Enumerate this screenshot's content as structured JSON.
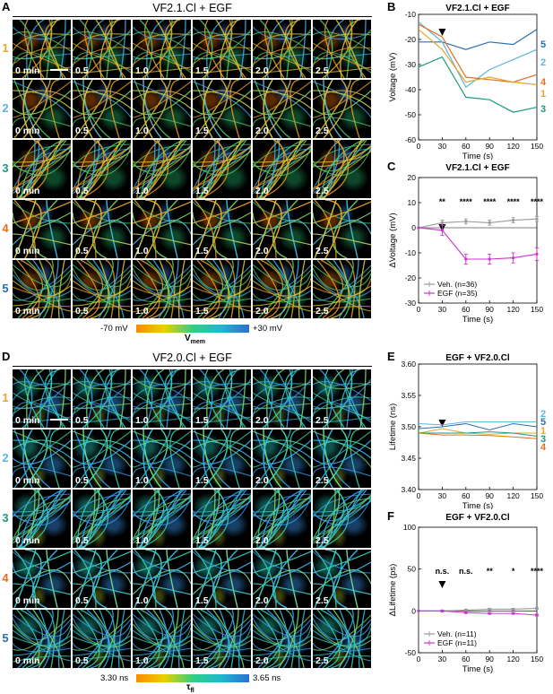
{
  "panels": {
    "A": {
      "label": "A",
      "title": "VF2.1.Cl + EGF"
    },
    "B": {
      "label": "B"
    },
    "C": {
      "label": "C"
    },
    "D": {
      "label": "D",
      "title": "VF2.0.Cl + EGF"
    },
    "E": {
      "label": "E"
    },
    "F": {
      "label": "F"
    }
  },
  "image_grid": {
    "row_labels": [
      "1",
      "2",
      "3",
      "4",
      "5"
    ],
    "row_colors": [
      "#e8a52a",
      "#5fb3dd",
      "#1a9a80",
      "#e07020",
      "#2a6fb0"
    ],
    "time_labels": [
      "0 min",
      "0.5",
      "1.0",
      "1.5",
      "2.0",
      "2.5"
    ]
  },
  "colorbar_top": {
    "min_label": "-70 mV",
    "max_label": "+30 mV",
    "symbol": "V",
    "symbol_sub": "mem"
  },
  "colorbar_bottom": {
    "min_label": "3.30 ns",
    "max_label": "3.65 ns",
    "symbol": "τ",
    "symbol_sub": "fl"
  },
  "chart_data": [
    {
      "id": "B",
      "type": "line",
      "title": "VF2.1.Cl + EGF",
      "xlabel": "Time (s)",
      "ylabel": "Voltage (mV)",
      "xlim": [
        0,
        150
      ],
      "ylim": [
        -60,
        -10
      ],
      "xticks": [
        0,
        30,
        60,
        90,
        120,
        150
      ],
      "yticks": [
        -60,
        -50,
        -40,
        -30,
        -20,
        -10
      ],
      "arrow_x": 30,
      "series": [
        {
          "name": "5",
          "color": "#2a6fb0",
          "x": [
            0,
            30,
            60,
            90,
            120,
            150
          ],
          "y": [
            -21,
            -21,
            -24,
            -21,
            -22,
            -16
          ]
        },
        {
          "name": "2",
          "color": "#5fb3dd",
          "x": [
            0,
            30,
            60,
            90,
            120,
            150
          ],
          "y": [
            -13,
            -21,
            -39,
            -32,
            -28,
            -24
          ]
        },
        {
          "name": "4",
          "color": "#e07020",
          "x": [
            0,
            30,
            60,
            90,
            120,
            150
          ],
          "y": [
            -14,
            -19,
            -35,
            -36,
            -37,
            -34
          ]
        },
        {
          "name": "1",
          "color": "#e8a52a",
          "x": [
            0,
            30,
            60,
            90,
            120,
            150
          ],
          "y": [
            -16,
            -24,
            -37,
            -35,
            -37,
            -38
          ]
        },
        {
          "name": "3",
          "color": "#1a9a80",
          "x": [
            0,
            30,
            60,
            90,
            120,
            150
          ],
          "y": [
            -31,
            -27,
            -43,
            -44,
            -49,
            -47
          ]
        }
      ]
    },
    {
      "id": "C",
      "type": "line",
      "title": "VF2.1.Cl + EGF",
      "xlabel": "Time (s)",
      "ylabel": "ΔVoltage (mV)",
      "xlim": [
        0,
        150
      ],
      "ylim": [
        -30,
        20
      ],
      "xticks": [
        0,
        30,
        60,
        90,
        120,
        150
      ],
      "yticks": [
        -30,
        -20,
        -10,
        0,
        10,
        20
      ],
      "arrow_x": 30,
      "significance": [
        "**",
        "****",
        "****",
        "****",
        "****"
      ],
      "significance_x": [
        30,
        60,
        90,
        120,
        150
      ],
      "legend": "bottom-left",
      "series": [
        {
          "name": "Veh. (n=36)",
          "color": "#999999",
          "x": [
            0,
            30,
            60,
            90,
            120,
            150
          ],
          "y": [
            0,
            2,
            2.5,
            2,
            3,
            3.5
          ],
          "err": [
            0,
            1,
            1,
            1,
            1,
            1
          ]
        },
        {
          "name": "EGF (n=35)",
          "color": "#cc33cc",
          "x": [
            0,
            30,
            60,
            90,
            120,
            150
          ],
          "y": [
            0,
            -1,
            -12.5,
            -12.5,
            -12,
            -10.5
          ],
          "err": [
            0,
            2,
            2,
            2,
            2,
            2.5
          ]
        }
      ]
    },
    {
      "id": "E",
      "type": "line",
      "title": "EGF + VF2.0.Cl",
      "xlabel": "Time (s)",
      "ylabel": "Lifetime (ns)",
      "xlim": [
        0,
        150
      ],
      "ylim": [
        3.4,
        3.6
      ],
      "xticks": [
        0,
        30,
        60,
        90,
        120,
        150
      ],
      "yticks": [
        3.4,
        3.45,
        3.5,
        3.55,
        3.6
      ],
      "arrow_x": 30,
      "series": [
        {
          "name": "2",
          "color": "#5fb3dd",
          "x": [
            0,
            30,
            60,
            90,
            120,
            150
          ],
          "y": [
            3.505,
            3.503,
            3.508,
            3.508,
            3.508,
            3.508
          ]
        },
        {
          "name": "5",
          "color": "#2a6fb0",
          "x": [
            0,
            30,
            60,
            90,
            120,
            150
          ],
          "y": [
            3.497,
            3.5,
            3.505,
            3.495,
            3.505,
            3.5
          ]
        },
        {
          "name": "1",
          "color": "#e8a52a",
          "x": [
            0,
            30,
            60,
            90,
            120,
            150
          ],
          "y": [
            3.49,
            3.497,
            3.49,
            3.488,
            3.49,
            3.49
          ]
        },
        {
          "name": "3",
          "color": "#1a9a80",
          "x": [
            0,
            30,
            60,
            90,
            120,
            150
          ],
          "y": [
            3.49,
            3.49,
            3.49,
            3.492,
            3.49,
            3.485
          ]
        },
        {
          "name": "4",
          "color": "#e07020",
          "x": [
            0,
            30,
            60,
            90,
            120,
            150
          ],
          "y": [
            3.49,
            3.487,
            3.487,
            3.486,
            3.484,
            3.481
          ]
        }
      ]
    },
    {
      "id": "F",
      "type": "line",
      "title": "EGF + VF2.0.Cl",
      "xlabel": "Time (s)",
      "ylabel": "ΔLifetime (ps)",
      "xlim": [
        0,
        150
      ],
      "ylim": [
        -50,
        100
      ],
      "xticks": [
        0,
        30,
        60,
        90,
        120,
        150
      ],
      "yticks": [
        -50,
        0,
        50,
        100
      ],
      "arrow_x": 30,
      "significance": [
        "n.s.",
        "n.s.",
        "**",
        "*",
        "****"
      ],
      "significance_x": [
        30,
        60,
        90,
        120,
        150
      ],
      "legend": "bottom-left",
      "series": [
        {
          "name": "Veh. (n=11)",
          "color": "#999999",
          "x": [
            0,
            30,
            60,
            90,
            120,
            150
          ],
          "y": [
            0,
            0,
            1,
            2,
            2,
            3
          ],
          "err": [
            0,
            1,
            1,
            1,
            1,
            1
          ]
        },
        {
          "name": "EGF (n=11)",
          "color": "#cc33cc",
          "x": [
            0,
            30,
            60,
            90,
            120,
            150
          ],
          "y": [
            0,
            0,
            -2,
            -3,
            -3,
            -5
          ],
          "err": [
            0,
            1,
            1,
            1,
            1,
            1
          ]
        }
      ]
    }
  ]
}
